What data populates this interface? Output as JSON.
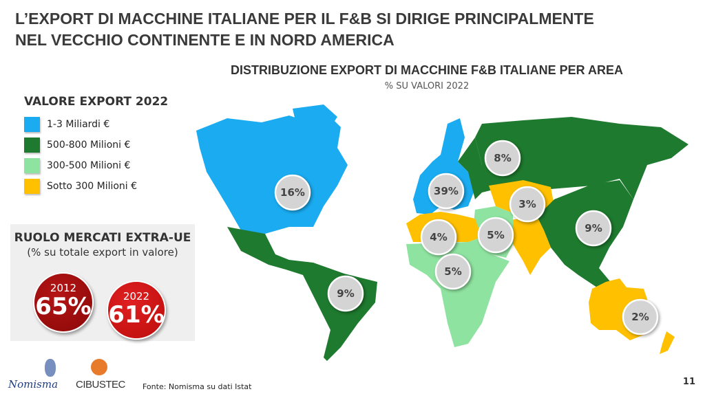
{
  "header": {
    "title_line1": "L’EXPORT DI MACCHINE ITALIANE PER IL F&B SI DIRIGE PRINCIPALMENTE",
    "title_line2": "NEL VECCHIO CONTINENTE E IN NORD AMERICA"
  },
  "map": {
    "title": "DISTRIBUZIONE EXPORT DI MACCHINE F&B ITALIANE PER AREA",
    "subtitle": "% SU VALORI 2022",
    "regions": [
      {
        "area": "Nord America",
        "share": "16%",
        "color": "#1aabf0"
      },
      {
        "area": "Europa",
        "share": "39%",
        "color": "#1aabf0"
      },
      {
        "area": "Russia/CSI",
        "share": "8%",
        "color": "#1e7a2e"
      },
      {
        "area": "Asia Centrale",
        "share": "3%",
        "color": "#ffc000"
      },
      {
        "area": "Asia Orientale",
        "share": "9%",
        "color": "#1e7a2e"
      },
      {
        "area": "Medio Oriente",
        "share": "5%",
        "color": "#8fe3a0"
      },
      {
        "area": "Nord Africa",
        "share": "4%",
        "color": "#ffc000"
      },
      {
        "area": "Africa Subsahariana",
        "share": "5%",
        "color": "#8fe3a0"
      },
      {
        "area": "America Latina",
        "share": "9%",
        "color": "#1e7a2e"
      },
      {
        "area": "Oceania",
        "share": "2%",
        "color": "#ffc000"
      }
    ]
  },
  "legend": {
    "title": "VALORE EXPORT 2022",
    "items": [
      {
        "label": "1-3 Miliardi €",
        "color": "#1aabf0"
      },
      {
        "label": "500-800 Milioni €",
        "color": "#1e7a2e"
      },
      {
        "label": "300-500 Milioni €",
        "color": "#8fe3a0"
      },
      {
        "label": "Sotto 300 Milioni €",
        "color": "#ffc000"
      }
    ]
  },
  "extra_ue": {
    "title": "RUOLO MERCATI EXTRA-UE",
    "subtitle": "(% su totale export in valore)",
    "items": [
      {
        "year": "2012",
        "value": "65%",
        "color": "#9e0b0b"
      },
      {
        "year": "2022",
        "value": "61%",
        "color": "#cc1010"
      }
    ]
  },
  "footer": {
    "logo1": "Nomisma",
    "logo2": "CIBUSTEC",
    "source": "Fonte: Nomisma su dati Istat",
    "page": "11"
  }
}
